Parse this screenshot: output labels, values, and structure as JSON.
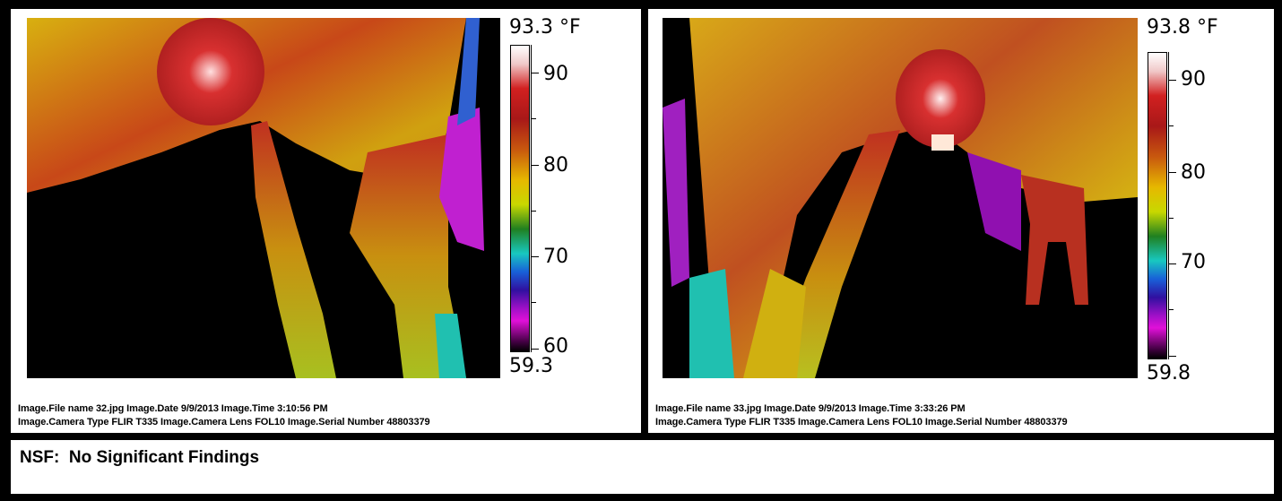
{
  "left_panel": {
    "scale_max": "93.3 °F",
    "scale_min": "59.3",
    "tick_labels": [
      "90",
      "80",
      "70",
      "60"
    ],
    "meta_line1": "Image.File name 32.jpg   Image.Date 9/9/2013   Image.Time 3:10:56 PM",
    "meta_line2": "Image.Camera Type FLIR T335   Image.Camera Lens FOL10   Image.Serial Number 48803379"
  },
  "right_panel": {
    "scale_max": "93.8 °F",
    "scale_min": "59.8",
    "tick_labels": [
      "90",
      "80",
      "70"
    ],
    "meta_line1": "Image.File name 33.jpg   Image.Date 9/9/2013   Image.Time 3:33:26 PM",
    "meta_line2": "Image.Camera Type FLIR T335   Image.Camera Lens FOL10   Image.Serial Number 48803379"
  },
  "footer": {
    "finding": "NSF:  No Significant Findings"
  },
  "colors": {
    "background": "#000000",
    "panel": "#ffffff",
    "thermal_red": "#c02020",
    "thermal_yellow": "#d8c800",
    "thermal_cyan": "#20c0b0",
    "thermal_magenta": "#c020d0"
  }
}
